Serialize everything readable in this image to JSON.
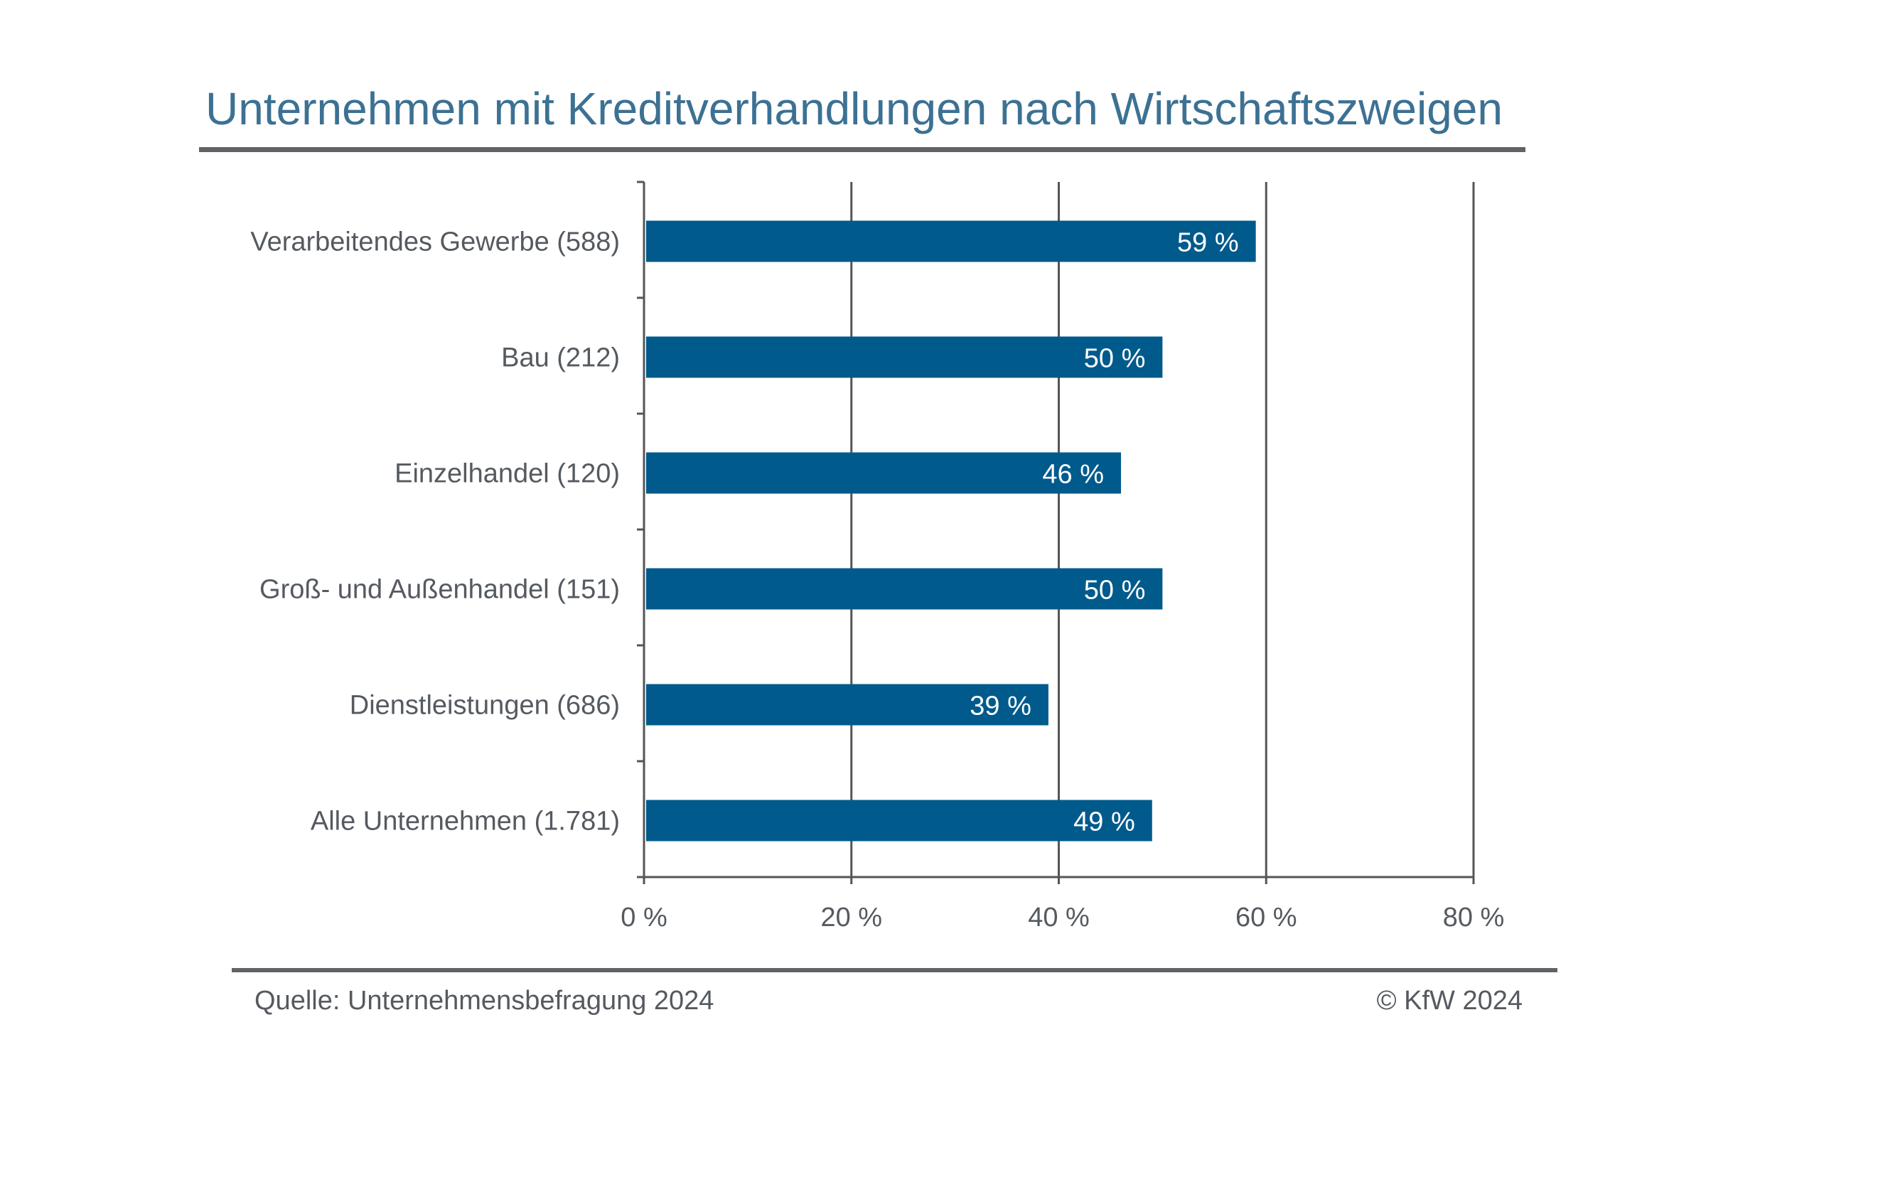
{
  "chart_data": {
    "type": "bar",
    "orientation": "horizontal",
    "title": "Unternehmen mit Kreditverhandlungen nach Wirtschaftszweigen",
    "categories": [
      "Verarbeitendes Gewerbe (588)",
      "Bau (212)",
      "Einzelhandel (120)",
      "Groß- und Außenhandel (151)",
      "Dienstleistungen (686)",
      "Alle Unternehmen (1.781)"
    ],
    "values": [
      59,
      50,
      46,
      50,
      39,
      49
    ],
    "data_labels": [
      "59 %",
      "50 %",
      "46 %",
      "50 %",
      "39 %",
      "49 %"
    ],
    "xlim": [
      0,
      80
    ],
    "x_ticks": [
      0,
      20,
      40,
      60,
      80
    ],
    "x_tick_labels": [
      "0 %",
      "20 %",
      "40 %",
      "60 %",
      "80 %"
    ],
    "xlabel": "",
    "ylabel": "",
    "grid": "vertical",
    "legend": "none",
    "bar_color": "#005a8c"
  },
  "footer": {
    "source": "Quelle: Unternehmensbefragung 2024",
    "copyright": "© KfW 2024"
  },
  "colors": {
    "title": "#3c7193",
    "bar": "#005a8c",
    "rule": "#5f6368",
    "grid": "#555555",
    "text": "#555a60"
  }
}
